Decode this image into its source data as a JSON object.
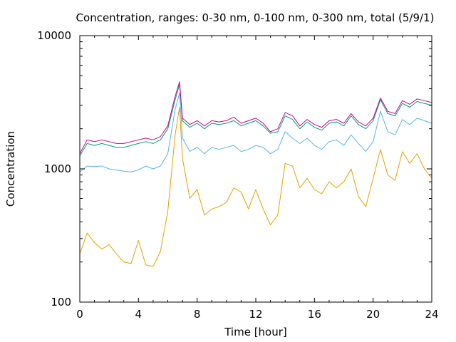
{
  "chart_data": {
    "type": "line",
    "title": "Concentration, ranges: 0-30 nm, 0-100 nm, 0-300 nm, total (5/9/1)",
    "xlabel": "Time [hour]",
    "ylabel": "Concentration",
    "xlim": [
      0,
      24
    ],
    "ylim": [
      100,
      10000
    ],
    "yscale": "log",
    "grid": false,
    "legend": "none",
    "x_ticks": [
      "0",
      "4",
      "8",
      "12",
      "16",
      "20",
      "24"
    ],
    "y_ticks": [
      "100",
      "1000",
      "10000"
    ],
    "x": [
      0,
      0.5,
      1,
      1.5,
      2,
      2.5,
      3,
      3.5,
      4,
      4.5,
      5,
      5.5,
      6,
      6.5,
      6.8,
      7,
      7.5,
      8,
      8.5,
      9,
      9.5,
      10,
      10.5,
      11,
      11.5,
      12,
      12.5,
      13,
      13.5,
      14,
      14.5,
      15,
      15.5,
      16,
      16.5,
      17,
      17.5,
      18,
      18.5,
      19,
      19.5,
      20,
      20.5,
      21,
      21.5,
      22,
      22.5,
      23,
      23.5,
      24
    ],
    "series": [
      {
        "color": "#e69f00",
        "values": [
          230,
          330,
          280,
          250,
          270,
          230,
          200,
          195,
          290,
          190,
          185,
          240,
          480,
          1800,
          2900,
          1200,
          600,
          700,
          450,
          500,
          520,
          560,
          720,
          670,
          500,
          700,
          500,
          380,
          450,
          1100,
          1050,
          720,
          850,
          700,
          650,
          800,
          720,
          800,
          1000,
          620,
          520,
          850,
          1400,
          900,
          820,
          1350,
          1100,
          1300,
          1000,
          850
        ]
      },
      {
        "color": "#56b4e9",
        "values": [
          950,
          1050,
          1040,
          1050,
          1000,
          980,
          960,
          950,
          980,
          1050,
          1000,
          1050,
          1300,
          2800,
          3700,
          1700,
          1350,
          1450,
          1300,
          1450,
          1400,
          1450,
          1500,
          1350,
          1400,
          1500,
          1450,
          1300,
          1400,
          1900,
          1700,
          1550,
          1700,
          1500,
          1400,
          1600,
          1650,
          1500,
          1800,
          1550,
          1350,
          1600,
          2700,
          1900,
          1800,
          2350,
          2150,
          2400,
          2300,
          2200
        ]
      },
      {
        "color": "#009e73",
        "values": [
          1250,
          1550,
          1500,
          1550,
          1500,
          1450,
          1450,
          1500,
          1550,
          1600,
          1550,
          1650,
          2000,
          3300,
          4300,
          2300,
          2050,
          2200,
          2000,
          2200,
          2150,
          2200,
          2300,
          2100,
          2200,
          2300,
          2100,
          1850,
          1900,
          2500,
          2350,
          2000,
          2250,
          2050,
          1950,
          2200,
          2250,
          2100,
          2500,
          2150,
          2000,
          2300,
          3300,
          2600,
          2500,
          3100,
          2900,
          3200,
          3100,
          3000
        ]
      },
      {
        "color": "#cc0099",
        "values": [
          1300,
          1650,
          1600,
          1650,
          1600,
          1550,
          1550,
          1600,
          1650,
          1700,
          1650,
          1750,
          2100,
          3500,
          4500,
          2400,
          2150,
          2300,
          2100,
          2300,
          2250,
          2300,
          2450,
          2200,
          2300,
          2400,
          2200,
          1900,
          2000,
          2650,
          2500,
          2100,
          2350,
          2150,
          2050,
          2300,
          2350,
          2200,
          2600,
          2250,
          2100,
          2400,
          3400,
          2700,
          2600,
          3250,
          3050,
          3350,
          3250,
          3150
        ]
      }
    ]
  }
}
